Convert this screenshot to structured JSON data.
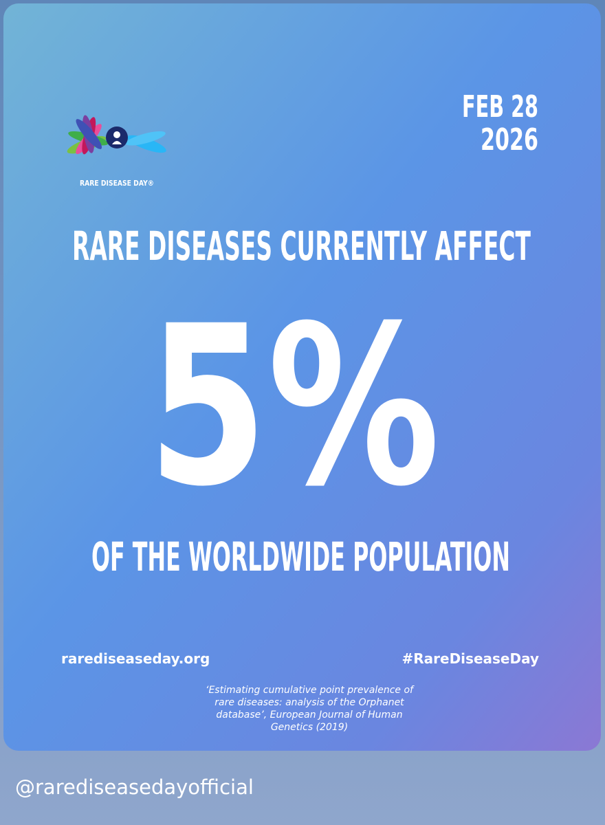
{
  "logo": {
    "label": "RARE DISEASE DAY®"
  },
  "date": [
    "FEB 28",
    "2026"
  ],
  "headline": "RARE DISEASES CURRENTLY AFFECT",
  "statistic": "5%",
  "subline": "OF THE WORLDWIDE POPULATION",
  "website": "rarediseaseday.org",
  "hashtag": "#RareDiseaseDay",
  "citation": [
    "‘Estimating cumulative point prevalence of",
    "rare diseases: analysis of the Orphanet",
    "database’, European Journal of Human",
    "Genetics (2019)"
  ],
  "handle": "@rarediseasedayofficial"
}
